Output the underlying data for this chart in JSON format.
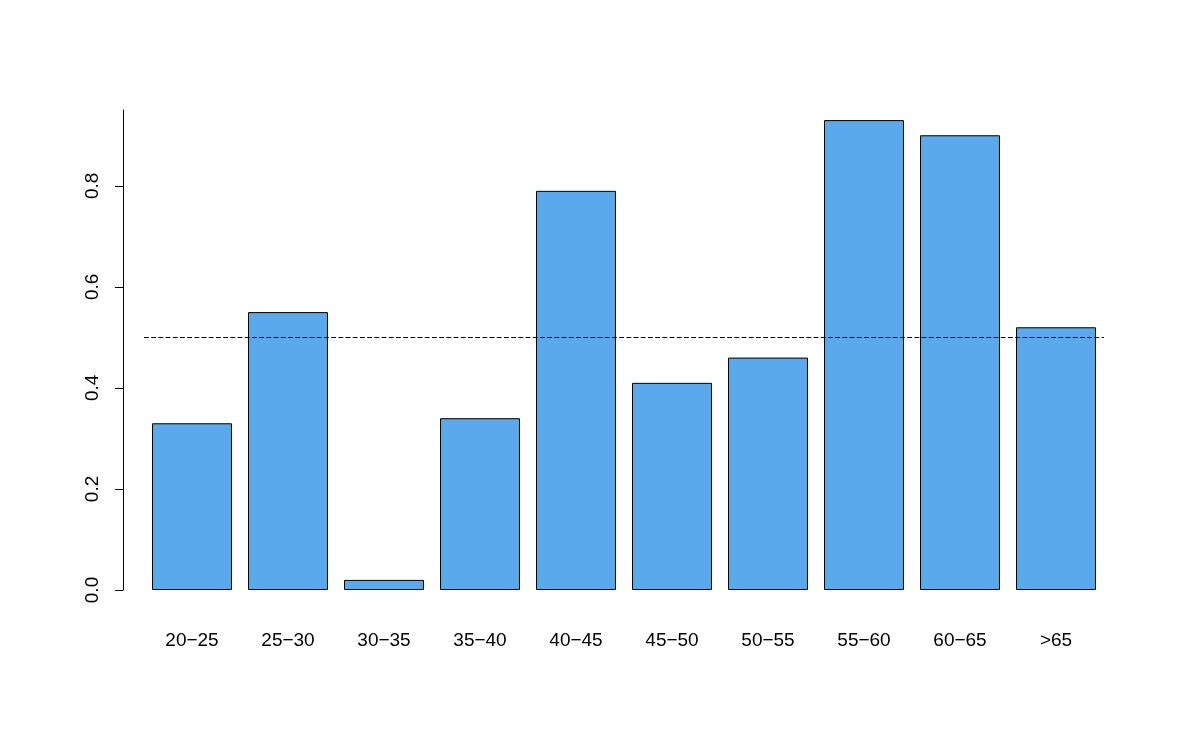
{
  "chart_data": {
    "type": "bar",
    "categories": [
      "20−25",
      "25−30",
      "30−35",
      "35−40",
      "40−45",
      "45−50",
      "50−55",
      "55−60",
      "60−65",
      ">65"
    ],
    "values": [
      0.33,
      0.55,
      0.02,
      0.34,
      0.79,
      0.41,
      0.46,
      0.93,
      0.9,
      0.52
    ],
    "color": "#5aa9ec",
    "ylim": [
      0,
      0.95
    ],
    "yticks": [
      {
        "value": 0,
        "label": "0.0"
      },
      {
        "value": 0.2,
        "label": "0.2"
      },
      {
        "value": 0.4,
        "label": "0.4"
      },
      {
        "value": 0.6,
        "label": "0.6"
      },
      {
        "value": 0.8,
        "label": "0.8"
      }
    ],
    "grid": false,
    "ref_lines": [
      {
        "axis": "y",
        "value": 0.5,
        "line_style": "dashed",
        "color": "#000000"
      }
    ]
  }
}
